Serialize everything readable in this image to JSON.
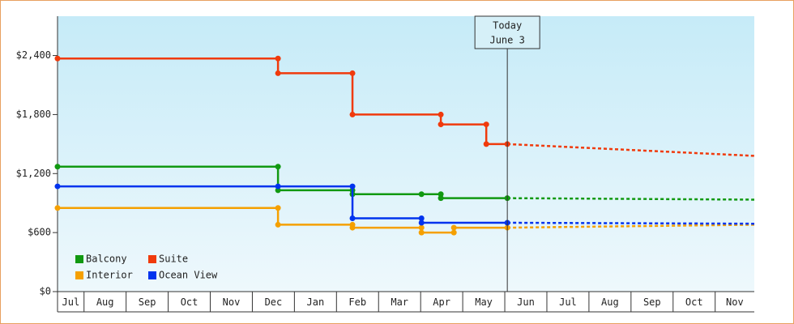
{
  "chart_data": {
    "type": "step-line",
    "xlim": [
      0.37,
      16.93
    ],
    "xticks": [
      {
        "value": 0,
        "label": "Jul"
      },
      {
        "value": 1,
        "label": "Aug"
      },
      {
        "value": 2,
        "label": "Sep"
      },
      {
        "value": 3,
        "label": "Oct"
      },
      {
        "value": 4,
        "label": "Nov"
      },
      {
        "value": 5,
        "label": "Dec"
      },
      {
        "value": 6,
        "label": "Jan"
      },
      {
        "value": 7,
        "label": "Feb"
      },
      {
        "value": 8,
        "label": "Mar"
      },
      {
        "value": 9,
        "label": "Apr"
      },
      {
        "value": 10,
        "label": "May"
      },
      {
        "value": 11,
        "label": "Jun"
      },
      {
        "value": 12,
        "label": "Jul"
      },
      {
        "value": 13,
        "label": "Aug"
      },
      {
        "value": 14,
        "label": "Sep"
      },
      {
        "value": 15,
        "label": "Oct"
      },
      {
        "value": 16,
        "label": "Nov"
      }
    ],
    "ylim": [
      0,
      2800
    ],
    "yticks": [
      {
        "value": 0,
        "label": "$0"
      },
      {
        "value": 600,
        "label": "$600"
      },
      {
        "value": 1200,
        "label": "$1,200"
      },
      {
        "value": 1800,
        "label": "$1,800"
      },
      {
        "value": 2400,
        "label": "$2,400"
      }
    ],
    "today": {
      "x": 11.06,
      "label": [
        "Today",
        "June 3"
      ]
    },
    "series": [
      {
        "name": "Balcony",
        "color": "#119911",
        "x": [
          0.37,
          5.61,
          5.61,
          7.38,
          7.38,
          9.02,
          9.48,
          9.48,
          11.06
        ],
        "values": [
          1270,
          1270,
          1030,
          1030,
          990,
          990,
          990,
          950,
          950
        ],
        "forecast": {
          "x": [
            11.06,
            16.93
          ],
          "values": [
            950,
            935
          ]
        }
      },
      {
        "name": "Suite",
        "color": "#f03a0c",
        "x": [
          0.37,
          5.61,
          5.61,
          7.38,
          7.38,
          9.48,
          9.48,
          10.56,
          10.56,
          11.06
        ],
        "values": [
          2370,
          2370,
          2220,
          2220,
          1800,
          1800,
          1700,
          1700,
          1500,
          1500
        ],
        "forecast": {
          "x": [
            11.06,
            16.93
          ],
          "values": [
            1500,
            1380
          ]
        }
      },
      {
        "name": "Interior",
        "color": "#f5a000",
        "x": [
          0.37,
          5.61,
          5.61,
          7.38,
          7.38,
          9.02,
          9.02,
          9.79,
          9.79,
          11.06
        ],
        "values": [
          850,
          850,
          680,
          680,
          650,
          650,
          600,
          600,
          650,
          650
        ],
        "forecast": {
          "x": [
            11.06,
            16.93
          ],
          "values": [
            650,
            680
          ]
        }
      },
      {
        "name": "Ocean View",
        "color": "#0033ee",
        "x": [
          0.37,
          5.61,
          7.38,
          7.38,
          9.02,
          9.02,
          11.06
        ],
        "values": [
          1070,
          1070,
          1070,
          745,
          745,
          700,
          700
        ],
        "forecast": {
          "x": [
            11.06,
            16.93
          ],
          "values": [
            700,
            690
          ]
        }
      }
    ]
  }
}
